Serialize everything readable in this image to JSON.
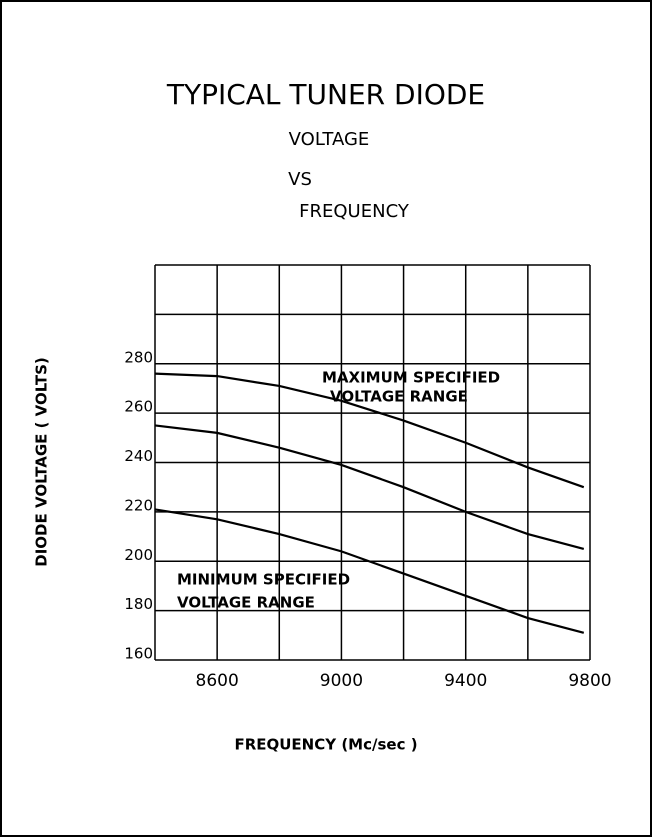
{
  "chart_data": {
    "type": "line",
    "title": "TYPICAL TUNER DIODE",
    "subtitle": [
      "VOLTAGE",
      "VS",
      "FREQUENCY"
    ],
    "x_label": "FREQUENCY (Mc/sec )",
    "y_label": "DIODE VOLTAGE ( VOLTS)",
    "annotations": [
      [
        "MAXIMUM SPECIFIED",
        "VOLTAGE RANGE"
      ],
      [
        "MINIMUM SPECIFIED",
        "VOLTAGE RANGE"
      ]
    ],
    "x": [
      8400,
      8600,
      8800,
      9000,
      9200,
      9400,
      9600,
      9780
    ],
    "series": [
      {
        "color": "#000000",
        "values": [
          276,
          275,
          271,
          265,
          257,
          248,
          238,
          230
        ]
      },
      {
        "color": "#000000",
        "values": [
          255,
          252,
          246,
          239,
          230,
          220,
          211,
          205
        ]
      },
      {
        "color": "#000000",
        "values": [
          221,
          217,
          211,
          204,
          195,
          186,
          177,
          171
        ]
      }
    ],
    "xlim": [
      8400,
      9800
    ],
    "xticks": [
      8600,
      9000,
      9400,
      9800
    ],
    "xgrid": [
      8400,
      8600,
      8800,
      9000,
      9200,
      9400,
      9600,
      9800
    ],
    "ylim": [
      160,
      320
    ],
    "yticks": [
      160,
      180,
      200,
      220,
      240,
      260,
      280
    ],
    "ygrid": [
      160,
      180,
      200,
      220,
      240,
      260,
      280,
      300,
      320
    ],
    "grid": true
  }
}
